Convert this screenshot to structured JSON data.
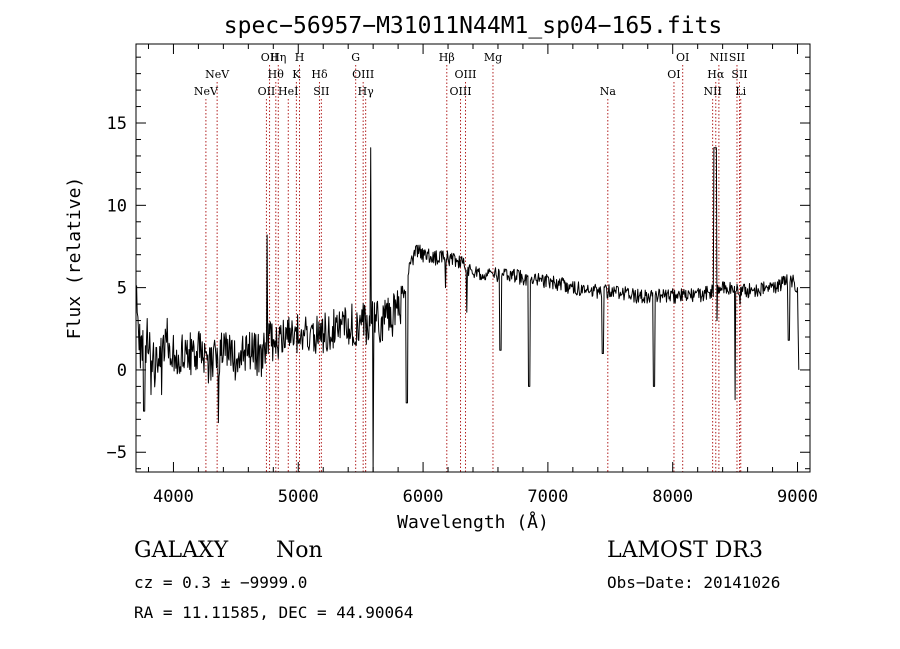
{
  "chart_data": {
    "type": "line",
    "title": "spec−56957−M31011N44M1_sp04−165.fits",
    "xlabel": "Wavelength (Å)",
    "ylabel": "Flux (relative)",
    "xlim": [
      3700,
      9100
    ],
    "ylim": [
      -6.2,
      19.8
    ],
    "xticks": [
      4000,
      5000,
      6000,
      7000,
      8000,
      9000
    ],
    "xtick_labels": [
      "4000",
      "5000",
      "6000",
      "7000",
      "8000",
      "9000"
    ],
    "yticks": [
      -5,
      0,
      5,
      10,
      15
    ],
    "ytick_labels": [
      "−5",
      "0",
      "5",
      "10",
      "15"
    ],
    "line_color": "#000000",
    "marker_color": "#b22222",
    "lines": [
      {
        "label": "NeV",
        "wave": 4260,
        "row": 3
      },
      {
        "label": "NeV",
        "wave": 4350,
        "row": 2
      },
      {
        "label": "OII",
        "wave": 4745,
        "row": 3
      },
      {
        "label": "OII",
        "wave": 4770,
        "row": 1
      },
      {
        "label": "Hη",
        "wave": 4840,
        "row": 1
      },
      {
        "label": "Hθ",
        "wave": 4820,
        "row": 2
      },
      {
        "label": "HeI",
        "wave": 4920,
        "row": 3
      },
      {
        "label": "K",
        "wave": 4985,
        "row": 2
      },
      {
        "label": "H",
        "wave": 5010,
        "row": 1
      },
      {
        "label": "Hδ",
        "wave": 5170,
        "row": 2
      },
      {
        "label": "SII",
        "wave": 5185,
        "row": 3
      },
      {
        "label": "G",
        "wave": 5460,
        "row": 1
      },
      {
        "label": "OIII",
        "wave": 5520,
        "row": 2
      },
      {
        "label": "Hγ",
        "wave": 5540,
        "row": 3
      },
      {
        "label": "Hβ",
        "wave": 6190,
        "row": 1
      },
      {
        "label": "OIII",
        "wave": 6300,
        "row": 3
      },
      {
        "label": "OIII",
        "wave": 6340,
        "row": 2
      },
      {
        "label": "Mg",
        "wave": 6560,
        "row": 1
      },
      {
        "label": "Na",
        "wave": 7480,
        "row": 3
      },
      {
        "label": "OI",
        "wave": 8010,
        "row": 2
      },
      {
        "label": "OI",
        "wave": 8080,
        "row": 1
      },
      {
        "label": "NII",
        "wave": 8320,
        "row": 3
      },
      {
        "label": "Hα",
        "wave": 8345,
        "row": 2
      },
      {
        "label": "NII",
        "wave": 8370,
        "row": 1
      },
      {
        "label": "SII",
        "wave": 8515,
        "row": 1
      },
      {
        "label": "SII",
        "wave": 8535,
        "row": 2
      },
      {
        "label": "Li",
        "wave": 8545,
        "row": 3
      }
    ],
    "spectrum_anchors": [
      [
        3700,
        5.0
      ],
      [
        3740,
        0.8
      ],
      [
        3800,
        2.2
      ],
      [
        3850,
        0.0
      ],
      [
        3900,
        1.0
      ],
      [
        3950,
        2.0
      ],
      [
        4000,
        1.0
      ],
      [
        4100,
        0.8
      ],
      [
        4200,
        1.3
      ],
      [
        4300,
        0.3
      ],
      [
        4400,
        1.2
      ],
      [
        4500,
        0.6
      ],
      [
        4600,
        1.3
      ],
      [
        4700,
        0.8
      ],
      [
        4750,
        1.5
      ],
      [
        4800,
        1.8
      ],
      [
        4900,
        2.0
      ],
      [
        5000,
        2.3
      ],
      [
        5200,
        2.3
      ],
      [
        5300,
        2.6
      ],
      [
        5400,
        2.7
      ],
      [
        5500,
        2.8
      ],
      [
        5650,
        2.9
      ],
      [
        5750,
        3.2
      ],
      [
        5820,
        3.8
      ],
      [
        5860,
        5.0
      ],
      [
        5900,
        6.5
      ],
      [
        5950,
        7.3
      ],
      [
        6000,
        7.0
      ],
      [
        6100,
        6.8
      ],
      [
        6200,
        6.8
      ],
      [
        6300,
        6.5
      ],
      [
        6400,
        6.0
      ],
      [
        6500,
        5.8
      ],
      [
        6700,
        5.7
      ],
      [
        6900,
        5.5
      ],
      [
        7100,
        5.2
      ],
      [
        7300,
        4.8
      ],
      [
        7500,
        4.8
      ],
      [
        7700,
        4.5
      ],
      [
        7900,
        4.5
      ],
      [
        8100,
        4.5
      ],
      [
        8250,
        4.6
      ],
      [
        8400,
        5.0
      ],
      [
        8600,
        4.8
      ],
      [
        8800,
        5.0
      ],
      [
        8950,
        5.5
      ],
      [
        9000,
        5.0
      ],
      [
        9010,
        0.0
      ]
    ],
    "spectrum_features": [
      [
        3765,
        -2.5,
        10
      ],
      [
        3820,
        -1.5,
        8
      ],
      [
        3905,
        -1.5,
        6
      ],
      [
        4360,
        -3.2,
        7
      ],
      [
        4750,
        8.2,
        6
      ],
      [
        5440,
        2.0,
        6
      ],
      [
        5580,
        13.5,
        5
      ],
      [
        5600,
        -7.5,
        6
      ],
      [
        5870,
        -2.0,
        10
      ],
      [
        6180,
        5.0,
        8
      ],
      [
        6350,
        3.5,
        8
      ],
      [
        6620,
        1.2,
        12
      ],
      [
        6850,
        -1.0,
        10
      ],
      [
        7440,
        1.0,
        10
      ],
      [
        7850,
        -1.0,
        10
      ],
      [
        8340,
        13.5,
        22
      ],
      [
        8355,
        3.0,
        6
      ],
      [
        8500,
        -1.8,
        8
      ],
      [
        8540,
        4.0,
        8
      ],
      [
        8930,
        1.8,
        10
      ]
    ],
    "noise": {
      "amplitude_blue": 1.3,
      "amplitude_red": 0.45,
      "step_angstrom": 5,
      "seed": 56957
    }
  },
  "info": {
    "object_class": "GALAXY",
    "subclass": "Non",
    "survey": "LAMOST DR3",
    "redshift_line": "cz = 0.3 ± −9999.0",
    "obs_date": "Obs−Date: 20141026",
    "coords": "RA =  11.11585, DEC =  44.90064"
  }
}
